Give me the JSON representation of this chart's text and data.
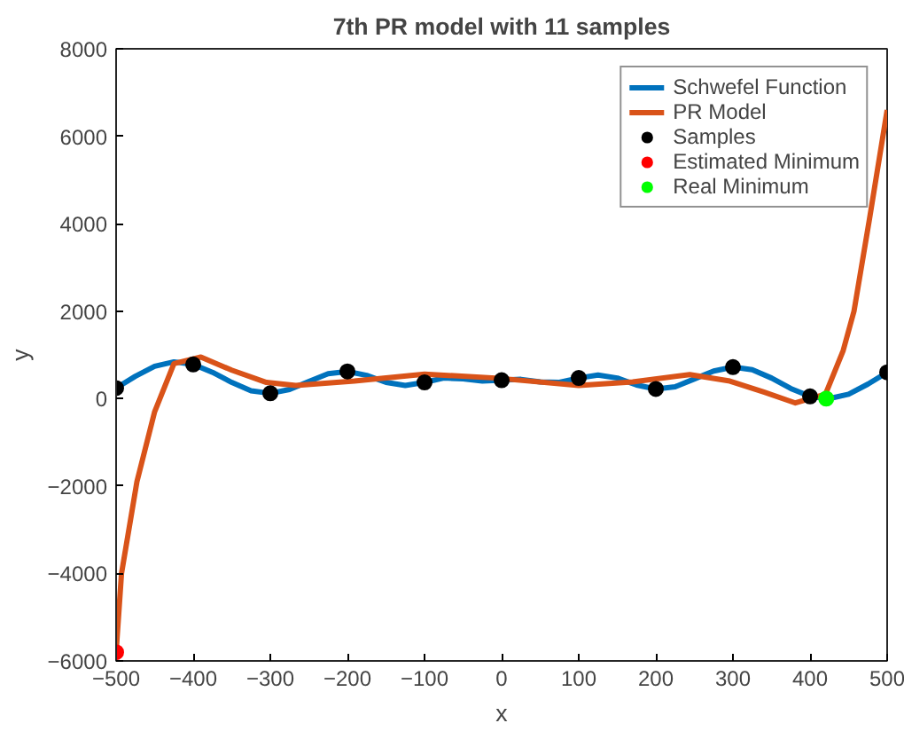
{
  "chart_data": {
    "type": "line",
    "title": "7th PR model with 11 samples",
    "xlabel": "x",
    "ylabel": "y",
    "xlim": [
      -500,
      500
    ],
    "ylim": [
      -6000,
      8000
    ],
    "xticks": [
      -500,
      -400,
      -300,
      -200,
      -100,
      0,
      100,
      200,
      300,
      400,
      500
    ],
    "yticks": [
      -6000,
      -4000,
      -2000,
      0,
      2000,
      4000,
      6000,
      8000
    ],
    "grid": false,
    "legend": "top right",
    "series": [
      {
        "name": "Schwefel Function",
        "color": "#0072bd",
        "line_style": "solid",
        "x": [
          -500,
          -475,
          -450,
          -425,
          -400,
          -375,
          -350,
          -325,
          -300,
          -275,
          -250,
          -225,
          -200,
          -175,
          -150,
          -125,
          -100,
          -75,
          -50,
          -25,
          0,
          25,
          50,
          75,
          100,
          125,
          150,
          175,
          200,
          225,
          250,
          275,
          300,
          325,
          350,
          375,
          400,
          421,
          425,
          450,
          475,
          500
        ],
        "values": [
          240,
          510,
          740,
          840,
          780,
          600,
          370,
          180,
          120,
          210,
          390,
          570,
          620,
          530,
          370,
          300,
          370,
          470,
          450,
          400,
          420,
          440,
          380,
          370,
          470,
          540,
          470,
          310,
          220,
          270,
          450,
          630,
          720,
          660,
          470,
          230,
          50,
          0,
          0,
          100,
          330,
          600
        ]
      },
      {
        "name": "PR Model",
        "color": "#d95319",
        "line_style": "solid",
        "x": [
          -500,
          -493,
          -473,
          -450,
          -425,
          -390,
          -350,
          -305,
          -267,
          -191,
          -100,
          -8,
          100,
          170,
          244,
          296,
          340,
          381,
          420,
          443,
          457,
          477,
          500
        ],
        "values": [
          -5800,
          -4000,
          -1900,
          -300,
          800,
          950,
          650,
          370,
          300,
          400,
          560,
          470,
          300,
          380,
          550,
          400,
          150,
          -100,
          100,
          1100,
          2000,
          4100,
          6600
        ]
      },
      {
        "name": "Samples",
        "type": "scatter",
        "color": "#000000",
        "marker": "circle",
        "x": [
          -500,
          -400,
          -300,
          -200,
          -100,
          0,
          100,
          200,
          300,
          400,
          500
        ],
        "values": [
          240,
          780,
          120,
          620,
          370,
          420,
          470,
          220,
          720,
          50,
          600
        ]
      },
      {
        "name": "Estimated Minimum",
        "type": "scatter",
        "color": "#ff0000",
        "marker": "circle",
        "x": [
          -500
        ],
        "values": [
          -5800
        ]
      },
      {
        "name": "Real Minimum",
        "type": "scatter",
        "color": "#00ff00",
        "marker": "circle",
        "x": [
          421
        ],
        "values": [
          0
        ]
      }
    ]
  }
}
